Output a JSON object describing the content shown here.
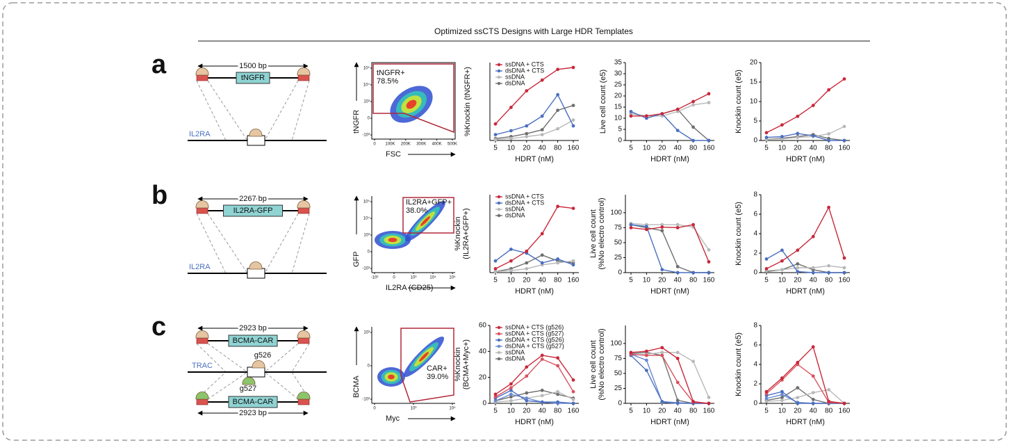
{
  "title": "Optimized ssCTS Designs with Large HDR Templates",
  "panels": [
    {
      "letter": "a",
      "diagram": {
        "size": "1500 bp",
        "insert": "tNGFR",
        "locus": "IL2RA"
      },
      "flow": {
        "gate": "tNGFR+",
        "percent": "78.5%",
        "ylabel": "tNGFR",
        "xlabel": "FSC",
        "xticks": [
          "0",
          "100K",
          "200K",
          "300K",
          "400K",
          "500K"
        ],
        "yticks": [
          "-10³",
          "0",
          "10³",
          "10⁴",
          "10⁵"
        ]
      }
    },
    {
      "letter": "b",
      "diagram": {
        "size": "2267 bp",
        "insert": "IL2RA-GFP",
        "locus": "IL2RA"
      },
      "flow": {
        "gate": "IL2RA+GFP+",
        "percent": "38.0%",
        "ylabel": "GFP",
        "xlabel": "IL2RA (CD25)",
        "xticks": [
          "-10³",
          "0",
          "10³",
          "10⁴",
          "10⁵"
        ],
        "yticks": [
          "-10³",
          "0",
          "10³",
          "10⁴",
          "10⁵"
        ]
      }
    },
    {
      "letter": "c",
      "diagram": {
        "size": "2923 bp",
        "insert": "BCMA-CAR",
        "locus": "TRAC",
        "guide_top": "g526",
        "guide_bottom": "g527",
        "insert_bottom": "BCMA-CAR",
        "size_bottom": "2923 bp"
      },
      "flow": {
        "gate": "CAR+",
        "percent": "39.0%",
        "ylabel": "BCMA",
        "xlabel": "Myc",
        "xticks": [
          "0",
          "10³",
          "10⁴"
        ],
        "yticks": [
          "-10³",
          "0",
          "10³"
        ]
      }
    }
  ],
  "chart_data": [
    {
      "type": "line",
      "ylabel": "%Knockin (tNGFR+)",
      "xlabel": "HDRT (nM)",
      "categories": [
        "5",
        "10",
        "20",
        "40",
        "80",
        "160"
      ],
      "ylim": [
        0,
        80
      ],
      "legend": true,
      "series": [
        {
          "name": "ssDNA + CTS",
          "color": "#c8283a",
          "values": [
            17,
            34,
            51,
            62,
            73,
            75
          ]
        },
        {
          "name": "dsDNA + CTS",
          "color": "#4a6fc0",
          "values": [
            6,
            10,
            15,
            25,
            47,
            15
          ]
        },
        {
          "name": "ssDNA",
          "color": "#b8b8b8",
          "values": [
            1,
            2,
            4,
            6,
            12,
            21
          ]
        },
        {
          "name": "dsDNA",
          "color": "#6e6e6e",
          "values": [
            2,
            4,
            7,
            11,
            31,
            36
          ]
        }
      ]
    },
    {
      "type": "line",
      "ylabel": "Live cell count (e5)",
      "xlabel": "HDRT (nM)",
      "categories": [
        "5",
        "10",
        "20",
        "40",
        "80",
        "160"
      ],
      "ylim": [
        0,
        35
      ],
      "yticks": [
        0,
        5,
        10,
        15,
        20,
        25,
        30,
        35
      ],
      "series": [
        {
          "color": "#c8283a",
          "values": [
            11,
            11,
            12,
            14,
            17.5,
            21
          ]
        },
        {
          "color": "#4a6fc0",
          "values": [
            13,
            10,
            12,
            4.5,
            0,
            0
          ]
        },
        {
          "color": "#b8b8b8",
          "values": [
            12,
            11,
            11,
            13,
            16,
            17
          ]
        },
        {
          "color": "#6e6e6e",
          "values": [
            12,
            11,
            12,
            14,
            6,
            0
          ]
        }
      ]
    },
    {
      "type": "line",
      "ylabel": "Knockin count (e5)",
      "xlabel": "HDRT (nM)",
      "categories": [
        "5",
        "10",
        "20",
        "40",
        "80",
        "160"
      ],
      "ylim": [
        0,
        20
      ],
      "yticks": [
        0,
        5,
        10,
        15,
        20
      ],
      "series": [
        {
          "color": "#c8283a",
          "values": [
            2,
            4,
            6.2,
            9,
            13,
            15.8
          ]
        },
        {
          "color": "#4a6fc0",
          "values": [
            0.8,
            1,
            1.8,
            1.2,
            0,
            0
          ]
        },
        {
          "color": "#b8b8b8",
          "values": [
            0.3,
            0.4,
            0.8,
            1,
            1.7,
            3.6
          ]
        },
        {
          "color": "#6e6e6e",
          "values": [
            0.3,
            0.6,
            1,
            1.5,
            0.5,
            0
          ]
        }
      ]
    },
    {
      "type": "line",
      "ylabel": [
        "%Knockin",
        "(IL2RA+GFP+)"
      ],
      "xlabel": "HDRT (nM)",
      "categories": [
        "5",
        "10",
        "20",
        "40",
        "80",
        "160"
      ],
      "ylim": [
        0,
        40
      ],
      "legend": true,
      "series": [
        {
          "name": "ssDNA + CTS",
          "color": "#c8283a",
          "values": [
            2,
            6,
            11,
            20,
            34,
            33
          ]
        },
        {
          "name": "dsDNA + CTS",
          "color": "#4a6fc0",
          "values": [
            6,
            12,
            10,
            5,
            7,
            4
          ]
        },
        {
          "name": "ssDNA",
          "color": "#b8b8b8",
          "values": [
            0.5,
            1,
            2,
            4,
            5,
            6
          ]
        },
        {
          "name": "dsDNA",
          "color": "#6e6e6e",
          "values": [
            0.5,
            2,
            5,
            9,
            6,
            5
          ]
        }
      ]
    },
    {
      "type": "line",
      "ylabel": [
        "Live cell count",
        "(%No electro control)"
      ],
      "xlabel": "HDRT (nM)",
      "categories": [
        "5",
        "10",
        "20",
        "40",
        "80",
        "160"
      ],
      "ylim": [
        0,
        130
      ],
      "yticks": [
        0,
        25,
        50,
        75,
        100
      ],
      "series": [
        {
          "color": "#c8283a",
          "values": [
            75,
            72,
            76,
            75,
            80,
            18
          ]
        },
        {
          "color": "#4a6fc0",
          "values": [
            80,
            77,
            5,
            0,
            0,
            0
          ]
        },
        {
          "color": "#b8b8b8",
          "values": [
            82,
            80,
            80,
            80,
            76,
            38
          ]
        },
        {
          "color": "#6e6e6e",
          "values": [
            80,
            75,
            70,
            10,
            0,
            0
          ]
        }
      ]
    },
    {
      "type": "line",
      "ylabel": "Knockin count (e5)",
      "xlabel": "HDRT (nM)",
      "categories": [
        "5",
        "10",
        "20",
        "40",
        "80",
        "160"
      ],
      "ylim": [
        0,
        8
      ],
      "yticks": [
        0,
        2,
        4,
        6,
        8
      ],
      "series": [
        {
          "color": "#c8283a",
          "values": [
            0.4,
            1.2,
            2.3,
            3.7,
            6.7,
            1.5
          ]
        },
        {
          "color": "#4a6fc0",
          "values": [
            1.4,
            2.3,
            0.1,
            0,
            0,
            0
          ]
        },
        {
          "color": "#b8b8b8",
          "values": [
            0.2,
            0.3,
            0.5,
            0.5,
            0.7,
            0.5
          ]
        },
        {
          "color": "#6e6e6e",
          "values": [
            0.1,
            0.3,
            0.9,
            0.3,
            0,
            0
          ]
        }
      ]
    },
    {
      "type": "line",
      "ylabel": [
        "%Knockin",
        "(BCMA+Myc+)"
      ],
      "xlabel": "HDRT (nM)",
      "categories": [
        "5",
        "10",
        "20",
        "40",
        "80",
        "160"
      ],
      "ylim": [
        0,
        60
      ],
      "yticks": [
        0,
        20,
        40,
        60
      ],
      "legend": true,
      "series": [
        {
          "name": "ssDNA + CTS (g526)",
          "color": "#c8283a",
          "values": [
            7,
            15,
            28,
            37,
            35,
            18
          ]
        },
        {
          "name": "ssDNA + CTS (g527)",
          "color": "#d9505e",
          "values": [
            5,
            12,
            21,
            34,
            29,
            9
          ]
        },
        {
          "name": "dsDNA + CTS (g526)",
          "color": "#4a6fc0",
          "values": [
            4,
            10,
            2,
            1,
            1,
            0
          ]
        },
        {
          "name": "dsDNA + CTS (g527)",
          "color": "#6a8ad0",
          "values": [
            2,
            7,
            4,
            1,
            0,
            0
          ]
        },
        {
          "name": "ssDNA",
          "color": "#b8b8b8",
          "values": [
            1,
            2,
            4,
            6,
            9,
            3
          ]
        },
        {
          "name": "dsDNA",
          "color": "#6e6e6e",
          "values": [
            2,
            5,
            8,
            10,
            7,
            4
          ]
        }
      ]
    },
    {
      "type": "line",
      "ylabel": [
        "Live cell count",
        "(%No electro control)"
      ],
      "xlabel": "HDRT (nM)",
      "categories": [
        "5",
        "10",
        "20",
        "40",
        "80",
        "160"
      ],
      "ylim": [
        0,
        130
      ],
      "yticks": [
        0,
        25,
        50,
        75,
        100
      ],
      "series": [
        {
          "color": "#c8283a",
          "values": [
            85,
            87,
            93,
            75,
            3,
            0
          ]
        },
        {
          "color": "#d9505e",
          "values": [
            82,
            80,
            80,
            35,
            2,
            0
          ]
        },
        {
          "color": "#4a6fc0",
          "values": [
            80,
            55,
            3,
            1,
            0,
            0
          ]
        },
        {
          "color": "#6a8ad0",
          "values": [
            82,
            72,
            2,
            0,
            0,
            0
          ]
        },
        {
          "color": "#b8b8b8",
          "values": [
            80,
            82,
            85,
            85,
            70,
            10
          ]
        },
        {
          "color": "#6e6e6e",
          "values": [
            83,
            85,
            80,
            5,
            0,
            0
          ]
        }
      ]
    },
    {
      "type": "line",
      "ylabel": "Knockin count (e5)",
      "xlabel": "HDRT (nM)",
      "categories": [
        "5",
        "10",
        "20",
        "40",
        "80",
        "160"
      ],
      "ylim": [
        0,
        8
      ],
      "yticks": [
        0,
        2,
        4,
        6,
        8
      ],
      "series": [
        {
          "color": "#c8283a",
          "values": [
            1.2,
            2.6,
            4.2,
            5.8,
            0.2,
            0
          ]
        },
        {
          "color": "#d9505e",
          "values": [
            1,
            2.4,
            4,
            2.8,
            0.1,
            0
          ]
        },
        {
          "color": "#4a6fc0",
          "values": [
            0.8,
            1.2,
            0,
            0,
            0,
            0
          ]
        },
        {
          "color": "#6a8ad0",
          "values": [
            0.5,
            0.9,
            0.1,
            0,
            0,
            0
          ]
        },
        {
          "color": "#b8b8b8",
          "values": [
            0.2,
            0.3,
            0.6,
            1.1,
            1.4,
            0
          ]
        },
        {
          "color": "#6e6e6e",
          "values": [
            0.3,
            0.6,
            1.6,
            0.4,
            0,
            0
          ]
        }
      ]
    }
  ]
}
